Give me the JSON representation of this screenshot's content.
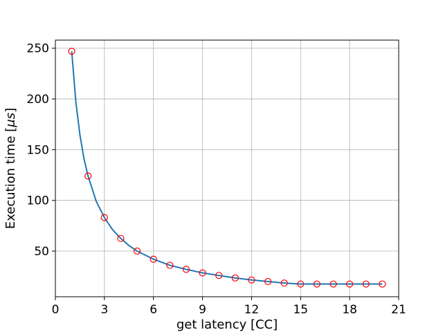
{
  "chart_data": {
    "type": "scatter",
    "title": "",
    "xlabel": "get latency [CC]",
    "ylabel_parts": [
      "Execution time [",
      "μs",
      "]"
    ],
    "xlim": [
      0,
      21
    ],
    "ylim": [
      5,
      258
    ],
    "xticks": [
      0,
      3,
      6,
      9,
      12,
      15,
      18,
      21
    ],
    "yticks": [
      50,
      100,
      150,
      200,
      250
    ],
    "grid": true,
    "series": [
      {
        "type": "scatter",
        "marker": "circle-open",
        "color": "#ff0000",
        "x": [
          1,
          2,
          3,
          4,
          5,
          6,
          7,
          8,
          9,
          10,
          11,
          12,
          13,
          14,
          15,
          16,
          17,
          18,
          19,
          20
        ],
        "y": [
          247,
          124,
          83,
          62.5,
          50,
          42,
          36,
          32,
          28.5,
          26,
          23.5,
          21.5,
          20,
          18.5,
          17.5,
          17.5,
          17.5,
          17.5,
          17.5,
          17.5
        ]
      },
      {
        "type": "line",
        "color": "#1f77b4",
        "x": [
          1,
          1.25,
          1.5,
          1.75,
          2,
          2.5,
          3,
          3.5,
          4,
          4.5,
          5,
          6,
          7,
          8,
          9,
          10,
          11,
          12,
          13,
          14,
          15,
          16,
          17,
          18,
          19,
          20
        ],
        "y": [
          247,
          197.6,
          164.7,
          141.1,
          124,
          99,
          83,
          71,
          62.5,
          55.5,
          50,
          42,
          36,
          32,
          28.5,
          26,
          23.5,
          21.5,
          20,
          18.5,
          17.5,
          17.5,
          17.5,
          17.5,
          17.5,
          17.5
        ]
      }
    ]
  }
}
